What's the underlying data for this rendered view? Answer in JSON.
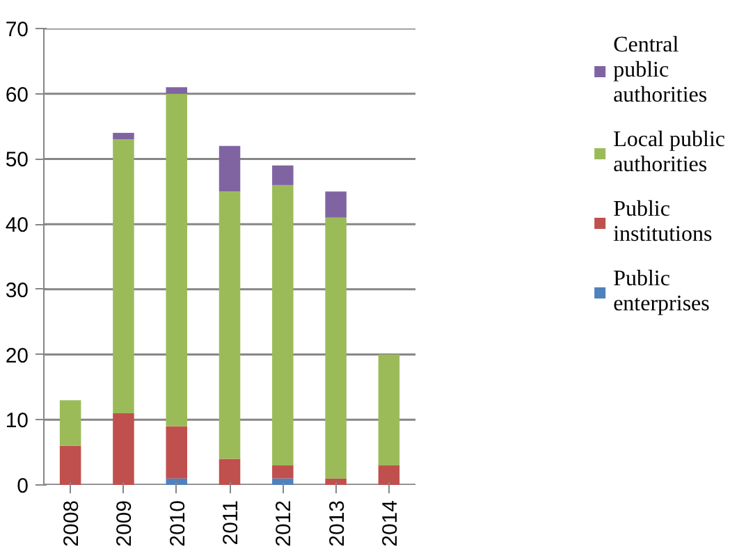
{
  "chart_data": {
    "type": "bar",
    "stacked": true,
    "categories": [
      "2008",
      "2009",
      "2010",
      "2011",
      "2012",
      "2013",
      "2014"
    ],
    "series": [
      {
        "name": "Public enterprises",
        "color": "#4f81bd",
        "values": [
          0,
          0,
          1,
          0,
          1,
          0,
          0
        ]
      },
      {
        "name": "Public institutions",
        "color": "#c0504d",
        "values": [
          6,
          11,
          8,
          4,
          2,
          1,
          3
        ]
      },
      {
        "name": "Local public authorities",
        "color": "#9bbb59",
        "values": [
          7,
          42,
          51,
          41,
          43,
          40,
          17
        ]
      },
      {
        "name": "Central public authorities",
        "color": "#8064a2",
        "values": [
          0,
          1,
          1,
          7,
          3,
          4,
          0
        ]
      }
    ],
    "ylim": [
      0,
      70
    ],
    "yticks": [
      0,
      10,
      20,
      30,
      40,
      50,
      60,
      70
    ],
    "grid": "y",
    "legend": "right"
  }
}
